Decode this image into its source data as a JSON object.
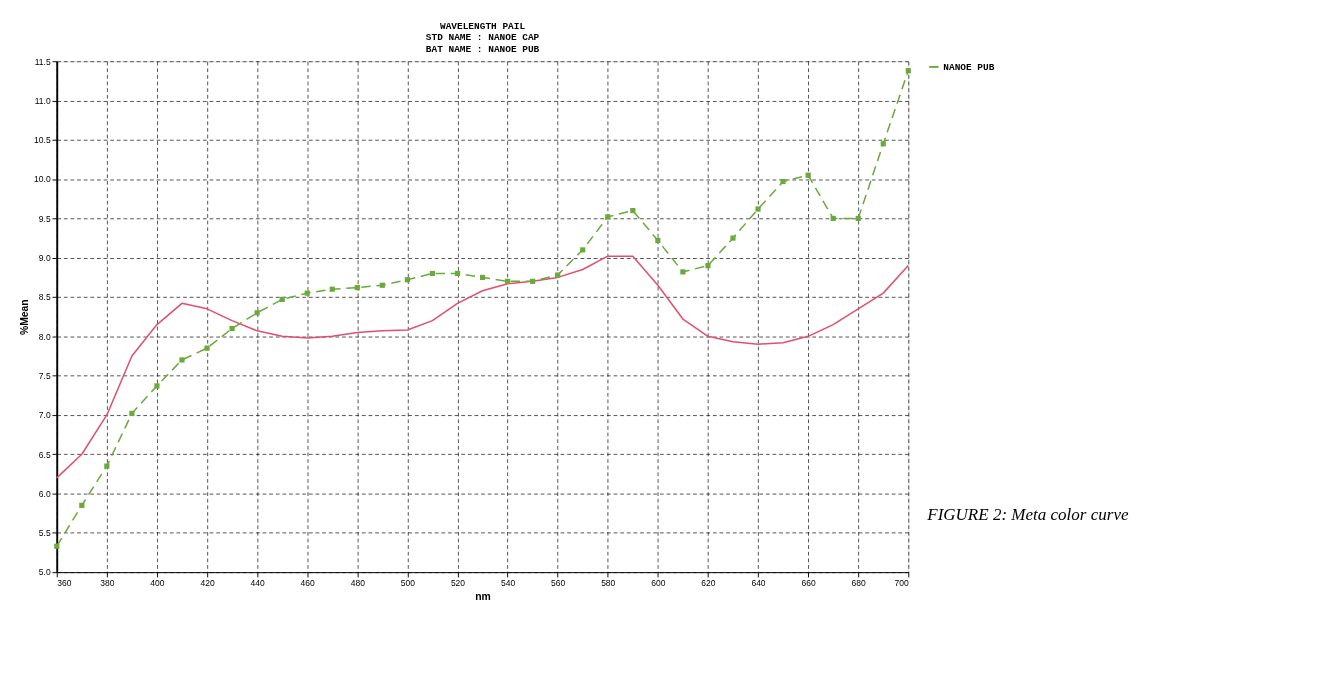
{
  "chart_data": {
    "type": "line",
    "title": "WAVELENGTH PAIL\nSTD NAME : NANOE CAP\nBAT NAME : NANOE PUB",
    "xlabel": "nm",
    "ylabel": "%Mean",
    "xlim": [
      360,
      700
    ],
    "xticks": [
      360,
      380,
      400,
      420,
      440,
      460,
      480,
      500,
      520,
      540,
      560,
      580,
      600,
      620,
      640,
      660,
      680,
      700
    ],
    "ylim": [
      5.0,
      11.5
    ],
    "yticks": [
      {
        "value": 5.0,
        "label": "5.0"
      },
      {
        "value": 5.5,
        "label": "5.5"
      },
      {
        "value": 6.0,
        "label": "6.0"
      },
      {
        "value": 6.5,
        "label": "6.5"
      },
      {
        "value": 7.0,
        "label": "7.0"
      },
      {
        "value": 7.5,
        "label": "7.5"
      },
      {
        "value": 8.0,
        "label": "8.0"
      },
      {
        "value": 8.5,
        "label": "8.5"
      },
      {
        "value": 9.0,
        "label": "9.0"
      },
      {
        "value": 9.5,
        "label": "9.5"
      },
      {
        "value": 10.0,
        "label": "10.0"
      },
      {
        "value": 10.5,
        "label": "10.5"
      },
      {
        "value": 11.0,
        "label": "11.0"
      },
      {
        "value": 11.5,
        "label": "11.5"
      }
    ],
    "x": [
      360,
      370,
      380,
      390,
      400,
      410,
      420,
      430,
      440,
      450,
      460,
      470,
      480,
      490,
      500,
      510,
      520,
      530,
      540,
      550,
      560,
      570,
      580,
      590,
      600,
      610,
      620,
      630,
      640,
      650,
      660,
      670,
      680,
      690,
      700
    ],
    "series": [
      {
        "color": "#e0506e",
        "line_style": "solid",
        "marker": "none",
        "values": [
          6.2,
          6.5,
          7.0,
          7.75,
          8.15,
          8.42,
          8.35,
          8.2,
          8.07,
          8.0,
          7.98,
          8.0,
          8.05,
          8.07,
          8.08,
          8.2,
          8.42,
          8.58,
          8.67,
          8.7,
          8.75,
          8.85,
          9.02,
          9.02,
          8.65,
          8.22,
          8.0,
          7.93,
          7.9,
          7.92,
          8.0,
          8.15,
          8.35,
          8.55,
          8.9
        ]
      },
      {
        "name": "NANOE PUB",
        "color": "#6aaa3a",
        "line_style": "dashed",
        "marker": "square",
        "values": [
          5.33,
          5.85,
          6.35,
          7.02,
          7.37,
          7.7,
          7.85,
          8.1,
          8.3,
          8.47,
          8.55,
          8.6,
          8.62,
          8.65,
          8.72,
          8.8,
          8.8,
          8.75,
          8.7,
          8.7,
          8.78,
          9.1,
          9.52,
          9.6,
          9.22,
          8.82,
          8.9,
          9.25,
          9.62,
          9.97,
          10.05,
          9.5,
          9.5,
          10.45,
          11.38
        ]
      }
    ],
    "grid": true,
    "legend": "top right",
    "annotations": [
      "FIGURE 2: Meta color curve"
    ]
  }
}
